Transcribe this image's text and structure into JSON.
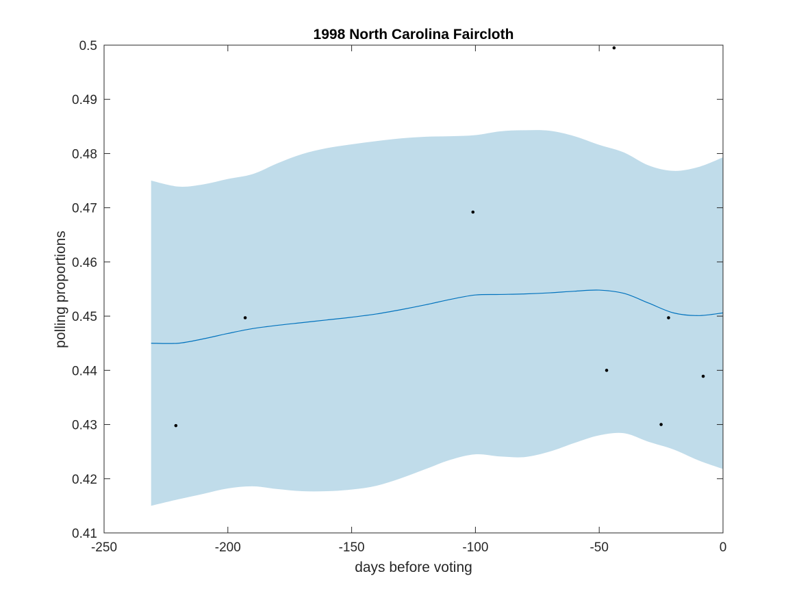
{
  "chart_data": {
    "type": "line",
    "title": "1998 North Carolina Faircloth",
    "xlabel": "days before voting",
    "ylabel": "polling proportions",
    "xlim": [
      -250,
      0
    ],
    "ylim": [
      0.41,
      0.5
    ],
    "xticks": [
      -250,
      -200,
      -150,
      -100,
      -50,
      0
    ],
    "yticks": [
      0.41,
      0.42,
      0.43,
      0.44,
      0.45,
      0.46,
      0.47,
      0.48,
      0.49,
      0.5
    ],
    "xtick_labels": [
      "-250",
      "-200",
      "-150",
      "-100",
      "-50",
      "0"
    ],
    "ytick_labels": [
      "0.41",
      "0.42",
      "0.43",
      "0.44",
      "0.45",
      "0.46",
      "0.47",
      "0.48",
      "0.49",
      "0.5"
    ],
    "grid": false,
    "colors": {
      "band": "#c0dcea",
      "line": "#0072bd",
      "points": "#000000",
      "axes": "#262626"
    },
    "series": [
      {
        "type": "area",
        "x": [
          -231,
          -220,
          -210,
          -200,
          -190,
          -180,
          -170,
          -160,
          -150,
          -140,
          -130,
          -120,
          -110,
          -100,
          -90,
          -80,
          -70,
          -60,
          -50,
          -40,
          -30,
          -20,
          -10,
          0
        ],
        "lower": [
          0.415,
          0.4162,
          0.4172,
          0.4182,
          0.4186,
          0.4181,
          0.4177,
          0.4177,
          0.418,
          0.4187,
          0.4201,
          0.4218,
          0.4235,
          0.4245,
          0.4241,
          0.424,
          0.425,
          0.4266,
          0.428,
          0.4284,
          0.4268,
          0.4254,
          0.4234,
          0.4218
        ],
        "upper": [
          0.475,
          0.4739,
          0.4743,
          0.4753,
          0.4762,
          0.4782,
          0.4799,
          0.481,
          0.4817,
          0.4823,
          0.4828,
          0.4831,
          0.4832,
          0.4834,
          0.4841,
          0.4843,
          0.4842,
          0.4832,
          0.4816,
          0.4802,
          0.4778,
          0.4768,
          0.4775,
          0.4793
        ]
      },
      {
        "type": "line",
        "x": [
          -231,
          -220,
          -210,
          -200,
          -190,
          -180,
          -170,
          -160,
          -150,
          -140,
          -130,
          -120,
          -110,
          -100,
          -90,
          -80,
          -70,
          -60,
          -50,
          -40,
          -30,
          -20,
          -10,
          0
        ],
        "y": [
          0.445,
          0.445,
          0.4458,
          0.4468,
          0.4477,
          0.4483,
          0.4488,
          0.4493,
          0.4498,
          0.4504,
          0.4512,
          0.4521,
          0.4531,
          0.4539,
          0.454,
          0.4541,
          0.4543,
          0.4546,
          0.4548,
          0.4542,
          0.4524,
          0.4506,
          0.4501,
          0.4506
        ]
      },
      {
        "type": "scatter",
        "x": [
          -221,
          -193,
          -101,
          -47,
          -44,
          -25,
          -22,
          -8
        ],
        "y": [
          0.4298,
          0.4497,
          0.4692,
          0.44,
          0.4995,
          0.43,
          0.4497,
          0.4389
        ]
      }
    ]
  }
}
